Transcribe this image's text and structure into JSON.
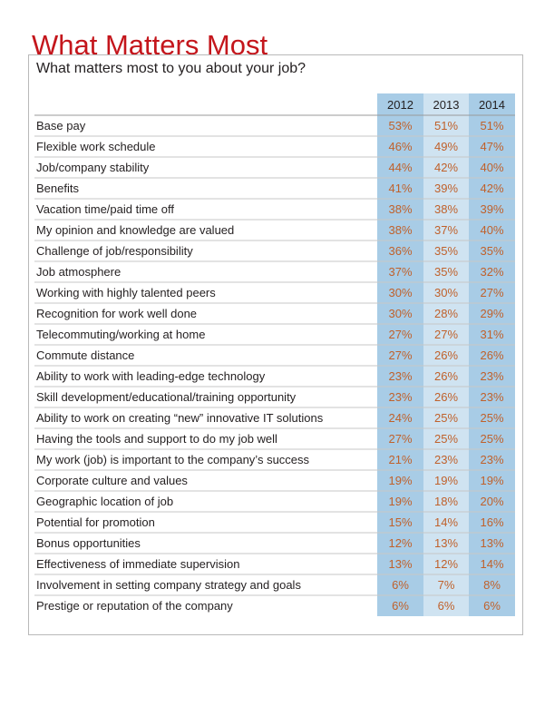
{
  "chart_data": {
    "type": "table",
    "title": "What Matters Most",
    "subtitle": "What matters most to you about your job?",
    "columns": [
      "2012",
      "2013",
      "2014"
    ],
    "rows": [
      {
        "label": "Base pay",
        "values": [
          "53%",
          "51%",
          "51%"
        ]
      },
      {
        "label": "Flexible work schedule",
        "values": [
          "46%",
          "49%",
          "47%"
        ]
      },
      {
        "label": "Job/company stability",
        "values": [
          "44%",
          "42%",
          "40%"
        ]
      },
      {
        "label": "Benefits",
        "values": [
          "41%",
          "39%",
          "42%"
        ]
      },
      {
        "label": "Vacation time/paid time off",
        "values": [
          "38%",
          "38%",
          "39%"
        ]
      },
      {
        "label": "My opinion and knowledge are valued",
        "values": [
          "38%",
          "37%",
          "40%"
        ]
      },
      {
        "label": "Challenge of job/responsibility",
        "values": [
          "36%",
          "35%",
          "35%"
        ]
      },
      {
        "label": "Job atmosphere",
        "values": [
          "37%",
          "35%",
          "32%"
        ]
      },
      {
        "label": "Working with highly talented peers",
        "values": [
          "30%",
          "30%",
          "27%"
        ]
      },
      {
        "label": "Recognition for work well done",
        "values": [
          "30%",
          "28%",
          "29%"
        ]
      },
      {
        "label": "Telecommuting/working at home",
        "values": [
          "27%",
          "27%",
          "31%"
        ]
      },
      {
        "label": "Commute distance",
        "values": [
          "27%",
          "26%",
          "26%"
        ]
      },
      {
        "label": "Ability to work with leading-edge technology",
        "values": [
          "23%",
          "26%",
          "23%"
        ]
      },
      {
        "label": "Skill development/educational/training opportunity",
        "values": [
          "23%",
          "26%",
          "23%"
        ]
      },
      {
        "label": "Ability to work on creating “new” innovative IT solutions",
        "values": [
          "24%",
          "25%",
          "25%"
        ]
      },
      {
        "label": "Having the tools and support to do my job well",
        "values": [
          "27%",
          "25%",
          "25%"
        ]
      },
      {
        "label": "My work (job) is important to the company’s success",
        "values": [
          "21%",
          "23%",
          "23%"
        ]
      },
      {
        "label": "Corporate culture and values",
        "values": [
          "19%",
          "19%",
          "19%"
        ]
      },
      {
        "label": "Geographic location of job",
        "values": [
          "19%",
          "18%",
          "20%"
        ]
      },
      {
        "label": "Potential for promotion",
        "values": [
          "15%",
          "14%",
          "16%"
        ]
      },
      {
        "label": "Bonus opportunities",
        "values": [
          "12%",
          "13%",
          "13%"
        ]
      },
      {
        "label": "Effectiveness of immediate supervision",
        "values": [
          "13%",
          "12%",
          "14%"
        ]
      },
      {
        "label": "Involvement in setting company strategy and goals",
        "values": [
          "6%",
          "7%",
          "8%"
        ]
      },
      {
        "label": "Prestige or reputation of the company",
        "values": [
          "6%",
          "6%",
          "6%"
        ]
      }
    ],
    "colors": {
      "title": "#c4161c",
      "value_text": "#c0612b",
      "label_text": "#231f20",
      "column_light": "#cfe3f1",
      "column_dark": "#a8cce6",
      "row_rule": "#c7c7c7",
      "panel_border": "#b9b9b9"
    }
  }
}
